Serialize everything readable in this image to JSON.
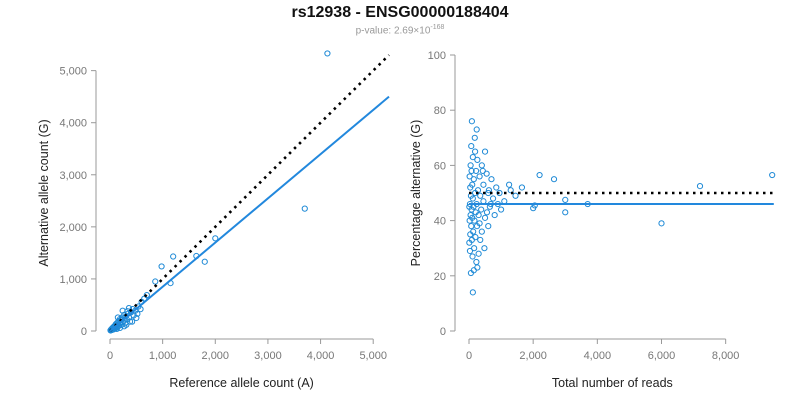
{
  "title": "rs12938 - ENSG00000188404",
  "subtitle": {
    "prefix": "p-value: 2.69",
    "times": "×",
    "base": "10",
    "exponent": "-168"
  },
  "colors": {
    "points": "#1f8ad6",
    "fit_line": "#2288dd",
    "reference_line": "#000000",
    "axis": "#999999",
    "tick_text": "#777777"
  },
  "chart_data": [
    {
      "type": "scatter",
      "name": "left-panel",
      "xlabel": "Reference allele count (A)",
      "ylabel": "Alternative allele count (G)",
      "xlim": [
        0,
        5300
      ],
      "ylim": [
        0,
        5300
      ],
      "xticks": [
        0,
        1000,
        2000,
        3000,
        4000,
        5000
      ],
      "xtick_labels": [
        "0",
        "1,000",
        "2,000",
        "3,000",
        "4,000",
        "5,000"
      ],
      "yticks": [
        0,
        1000,
        2000,
        3000,
        4000,
        5000
      ],
      "ytick_labels": [
        "0",
        "1,000",
        "2,000",
        "3,000",
        "4,000",
        "5,000"
      ],
      "grid": false,
      "lines": [
        {
          "style": "dotted",
          "color": "#000000",
          "x": [
            0,
            5300
          ],
          "y": [
            0,
            5300
          ]
        },
        {
          "style": "solid",
          "color": "#2288dd",
          "x": [
            0,
            5300
          ],
          "y": [
            0,
            4500
          ]
        }
      ],
      "points": [
        {
          "x": 4130,
          "y": 5330
        },
        {
          "x": 3700,
          "y": 2350
        },
        {
          "x": 2000,
          "y": 1780
        },
        {
          "x": 1800,
          "y": 1330
        },
        {
          "x": 1640,
          "y": 1440
        },
        {
          "x": 1200,
          "y": 1430
        },
        {
          "x": 1150,
          "y": 920
        },
        {
          "x": 980,
          "y": 1240
        },
        {
          "x": 860,
          "y": 950
        },
        {
          "x": 700,
          "y": 690
        },
        {
          "x": 650,
          "y": 620
        },
        {
          "x": 600,
          "y": 560
        },
        {
          "x": 580,
          "y": 420
        },
        {
          "x": 540,
          "y": 470
        },
        {
          "x": 520,
          "y": 330
        },
        {
          "x": 480,
          "y": 390
        },
        {
          "x": 450,
          "y": 300
        },
        {
          "x": 430,
          "y": 420
        },
        {
          "x": 400,
          "y": 360
        },
        {
          "x": 380,
          "y": 180
        },
        {
          "x": 360,
          "y": 260
        },
        {
          "x": 340,
          "y": 330
        },
        {
          "x": 320,
          "y": 220
        },
        {
          "x": 300,
          "y": 280
        },
        {
          "x": 290,
          "y": 150
        },
        {
          "x": 270,
          "y": 310
        },
        {
          "x": 260,
          "y": 200
        },
        {
          "x": 240,
          "y": 160
        },
        {
          "x": 230,
          "y": 260
        },
        {
          "x": 220,
          "y": 120
        },
        {
          "x": 210,
          "y": 210
        },
        {
          "x": 200,
          "y": 170
        },
        {
          "x": 190,
          "y": 230
        },
        {
          "x": 180,
          "y": 140
        },
        {
          "x": 170,
          "y": 100
        },
        {
          "x": 160,
          "y": 190
        },
        {
          "x": 150,
          "y": 130
        },
        {
          "x": 140,
          "y": 80
        },
        {
          "x": 130,
          "y": 150
        },
        {
          "x": 120,
          "y": 110
        },
        {
          "x": 115,
          "y": 60
        },
        {
          "x": 110,
          "y": 130
        },
        {
          "x": 100,
          "y": 90
        },
        {
          "x": 95,
          "y": 50
        },
        {
          "x": 90,
          "y": 100
        },
        {
          "x": 85,
          "y": 70
        },
        {
          "x": 80,
          "y": 40
        },
        {
          "x": 75,
          "y": 85
        },
        {
          "x": 70,
          "y": 60
        },
        {
          "x": 65,
          "y": 30
        },
        {
          "x": 60,
          "y": 70
        },
        {
          "x": 55,
          "y": 45
        },
        {
          "x": 50,
          "y": 25
        },
        {
          "x": 45,
          "y": 55
        },
        {
          "x": 40,
          "y": 35
        },
        {
          "x": 35,
          "y": 20
        },
        {
          "x": 30,
          "y": 40
        },
        {
          "x": 25,
          "y": 25
        },
        {
          "x": 20,
          "y": 15
        },
        {
          "x": 15,
          "y": 20
        },
        {
          "x": 10,
          "y": 10
        },
        {
          "x": 240,
          "y": 390
        },
        {
          "x": 310,
          "y": 120
        },
        {
          "x": 150,
          "y": 260
        },
        {
          "x": 420,
          "y": 180
        },
        {
          "x": 500,
          "y": 250
        },
        {
          "x": 360,
          "y": 440
        },
        {
          "x": 270,
          "y": 90
        },
        {
          "x": 190,
          "y": 60
        },
        {
          "x": 130,
          "y": 40
        },
        {
          "x": 330,
          "y": 380
        }
      ]
    },
    {
      "type": "scatter",
      "name": "right-panel",
      "xlabel": "Total number of reads",
      "ylabel": "Percentage alternative (G)",
      "xlim": [
        0,
        9600
      ],
      "ylim": [
        0,
        100
      ],
      "xticks": [
        0,
        2000,
        4000,
        6000,
        8000
      ],
      "xtick_labels": [
        "0",
        "2,000",
        "4,000",
        "6,000",
        "8,000"
      ],
      "yticks": [
        0,
        20,
        40,
        60,
        80,
        100
      ],
      "ytick_labels": [
        "0",
        "20",
        "40",
        "60",
        "80",
        "100"
      ],
      "grid": false,
      "lines": [
        {
          "style": "dotted",
          "color": "#000000",
          "x": [
            0,
            9500
          ],
          "y": [
            50,
            50
          ]
        },
        {
          "style": "solid",
          "color": "#2288dd",
          "x": [
            0,
            9500
          ],
          "y": [
            46,
            46
          ]
        }
      ],
      "points": [
        {
          "x": 9450,
          "y": 56.5
        },
        {
          "x": 7200,
          "y": 52.5
        },
        {
          "x": 6000,
          "y": 39
        },
        {
          "x": 3700,
          "y": 46
        },
        {
          "x": 3000,
          "y": 43
        },
        {
          "x": 3000,
          "y": 47.5
        },
        {
          "x": 2650,
          "y": 55
        },
        {
          "x": 2200,
          "y": 56.5
        },
        {
          "x": 2000,
          "y": 44.5
        },
        {
          "x": 2050,
          "y": 45.5
        },
        {
          "x": 1650,
          "y": 52
        },
        {
          "x": 1450,
          "y": 49
        },
        {
          "x": 1300,
          "y": 51
        },
        {
          "x": 1250,
          "y": 53
        },
        {
          "x": 1100,
          "y": 47
        },
        {
          "x": 1000,
          "y": 44
        },
        {
          "x": 950,
          "y": 50
        },
        {
          "x": 900,
          "y": 46
        },
        {
          "x": 850,
          "y": 52
        },
        {
          "x": 800,
          "y": 42
        },
        {
          "x": 750,
          "y": 48
        },
        {
          "x": 700,
          "y": 55
        },
        {
          "x": 650,
          "y": 45
        },
        {
          "x": 600,
          "y": 38
        },
        {
          "x": 600,
          "y": 50
        },
        {
          "x": 550,
          "y": 57
        },
        {
          "x": 500,
          "y": 41
        },
        {
          "x": 500,
          "y": 65
        },
        {
          "x": 450,
          "y": 47
        },
        {
          "x": 450,
          "y": 53
        },
        {
          "x": 400,
          "y": 36
        },
        {
          "x": 400,
          "y": 60
        },
        {
          "x": 380,
          "y": 44
        },
        {
          "x": 350,
          "y": 49
        },
        {
          "x": 350,
          "y": 33
        },
        {
          "x": 330,
          "y": 56
        },
        {
          "x": 300,
          "y": 42
        },
        {
          "x": 300,
          "y": 28
        },
        {
          "x": 280,
          "y": 51
        },
        {
          "x": 260,
          "y": 62
        },
        {
          "x": 250,
          "y": 38
        },
        {
          "x": 240,
          "y": 46
        },
        {
          "x": 230,
          "y": 25
        },
        {
          "x": 220,
          "y": 58
        },
        {
          "x": 210,
          "y": 43
        },
        {
          "x": 200,
          "y": 34
        },
        {
          "x": 190,
          "y": 50
        },
        {
          "x": 180,
          "y": 70
        },
        {
          "x": 170,
          "y": 40
        },
        {
          "x": 160,
          "y": 30
        },
        {
          "x": 150,
          "y": 55
        },
        {
          "x": 150,
          "y": 22
        },
        {
          "x": 140,
          "y": 45
        },
        {
          "x": 130,
          "y": 36
        },
        {
          "x": 120,
          "y": 63
        },
        {
          "x": 120,
          "y": 48
        },
        {
          "x": 110,
          "y": 27
        },
        {
          "x": 100,
          "y": 41
        },
        {
          "x": 100,
          "y": 53
        },
        {
          "x": 90,
          "y": 76
        },
        {
          "x": 90,
          "y": 33
        },
        {
          "x": 80,
          "y": 58
        },
        {
          "x": 80,
          "y": 44
        },
        {
          "x": 70,
          "y": 38
        },
        {
          "x": 70,
          "y": 67
        },
        {
          "x": 60,
          "y": 49
        },
        {
          "x": 60,
          "y": 21
        },
        {
          "x": 50,
          "y": 42
        },
        {
          "x": 50,
          "y": 60
        },
        {
          "x": 40,
          "y": 35
        },
        {
          "x": 40,
          "y": 52
        },
        {
          "x": 30,
          "y": 46
        },
        {
          "x": 30,
          "y": 29
        },
        {
          "x": 20,
          "y": 40
        },
        {
          "x": 20,
          "y": 56
        },
        {
          "x": 10,
          "y": 45
        },
        {
          "x": 10,
          "y": 32
        },
        {
          "x": 120,
          "y": 14
        },
        {
          "x": 260,
          "y": 23
        },
        {
          "x": 330,
          "y": 39
        },
        {
          "x": 480,
          "y": 30
        },
        {
          "x": 560,
          "y": 43
        },
        {
          "x": 620,
          "y": 51
        },
        {
          "x": 680,
          "y": 46
        },
        {
          "x": 430,
          "y": 58
        },
        {
          "x": 190,
          "y": 65
        },
        {
          "x": 240,
          "y": 73
        }
      ]
    }
  ]
}
